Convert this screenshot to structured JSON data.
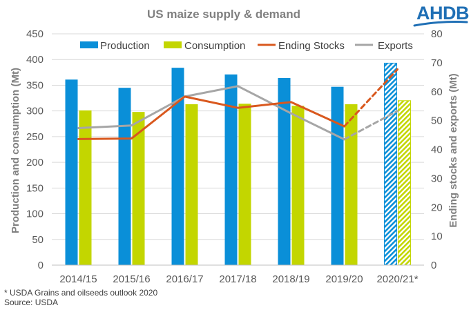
{
  "logo": {
    "text": "AHDB",
    "color": "#1f6fb5"
  },
  "footnotes": {
    "note": "* USDA Grains and oilseeds outlook 2020",
    "source": "Source: USDA"
  },
  "colors": {
    "production": "#0a8fd8",
    "consumption": "#c3d600",
    "ending_stocks": "#d9581e",
    "exports": "#a6a6a6",
    "gridline": "#d9d9d9"
  },
  "chart_data": {
    "type": "bar",
    "title": "US maize supply & demand",
    "categories": [
      "2014/15",
      "2015/16",
      "2016/17",
      "2017/18",
      "2018/19",
      "2019/20",
      "2020/21*"
    ],
    "forecast_categories": [
      "2020/21*"
    ],
    "ylabel": "Production and consumption (Mt)",
    "y2label": "Ending stocks and exports (Mt)",
    "ylim": [
      0,
      450
    ],
    "y2lim": [
      0,
      80
    ],
    "yticks": [
      0,
      50,
      100,
      150,
      200,
      250,
      300,
      350,
      400,
      450
    ],
    "y2ticks": [
      0,
      10,
      20,
      30,
      40,
      50,
      60,
      70,
      80
    ],
    "grid": true,
    "legend_position": "top",
    "series": [
      {
        "name": "Production",
        "type": "bar",
        "axis": "left",
        "values": [
          361,
          345,
          384,
          371,
          364,
          347,
          393
        ]
      },
      {
        "name": "Consumption",
        "type": "bar",
        "axis": "left",
        "values": [
          301,
          298,
          313,
          314,
          310,
          313,
          320
        ]
      },
      {
        "name": "Ending Stocks",
        "type": "line",
        "axis": "right",
        "values": [
          43.6,
          43.8,
          58.3,
          54.4,
          56.4,
          48.0,
          67.7
        ]
      },
      {
        "name": "Exports",
        "type": "line",
        "axis": "right",
        "values": [
          47.4,
          48.3,
          58.3,
          61.9,
          52.5,
          43.5,
          53.3
        ]
      }
    ]
  }
}
